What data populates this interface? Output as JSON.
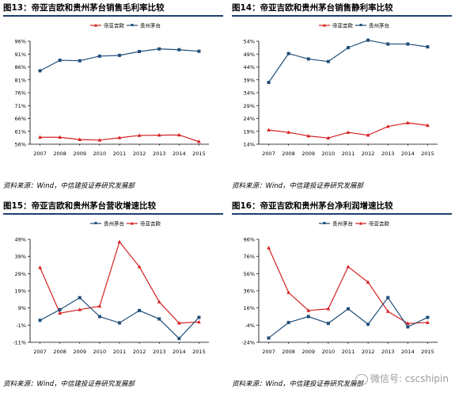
{
  "panels": [
    {
      "title": "图13：帝亚吉欧和贵州茅台销售毛利率比较",
      "source": "资料来源：Wind，中信建投证券研究发展部"
    },
    {
      "title": "图14：帝亚吉欧和贵州茅台销售静利率比较",
      "source": "资料来源：Wind，中信建投证券研究发展部"
    },
    {
      "title": "图15：帝亚吉欧和贵州茅台营收增速比较",
      "source": "资料来源：Wind，中信建投证券研究发展部"
    },
    {
      "title": "图16：帝亚吉欧和贵州茅台净利润增速比较",
      "source": "资料来源：Wind，中信建投证券研究发展部"
    }
  ],
  "watermark": "微信号: cscshipin",
  "colors": {
    "red": "#d42020",
    "blue": "#1f4e79",
    "title_rule": "#1f3f6e"
  },
  "chart_data": [
    {
      "type": "line",
      "title": "",
      "x": [
        "2007",
        "2008",
        "2009",
        "2010",
        "2011",
        "2012",
        "2013",
        "2014",
        "2015"
      ],
      "yticks": [
        "56%",
        "61%",
        "66%",
        "71%",
        "76%",
        "81%",
        "86%",
        "91%",
        "96%"
      ],
      "ylim": [
        56,
        96
      ],
      "grid": false,
      "legend_position": "top-center",
      "legend_order": [
        0,
        1
      ],
      "series": [
        {
          "name": "帝亚吉欧",
          "color": "#d42020",
          "marker": "triangle",
          "values": [
            58.7,
            58.7,
            57.8,
            57.6,
            58.5,
            59.4,
            59.5,
            59.6,
            57.0
          ]
        },
        {
          "name": "贵州茅台",
          "color": "#1f4e79",
          "marker": "square",
          "values": [
            84.5,
            88.6,
            88.4,
            90.2,
            90.5,
            92.0,
            93.0,
            92.7,
            92.1
          ]
        }
      ]
    },
    {
      "type": "line",
      "title": "",
      "x": [
        "2007",
        "2008",
        "2009",
        "2010",
        "2011",
        "2012",
        "2013",
        "2014",
        "2015"
      ],
      "yticks": [
        "14%",
        "19%",
        "24%",
        "29%",
        "34%",
        "39%",
        "44%",
        "49%",
        "54%"
      ],
      "ylim": [
        14,
        54
      ],
      "grid": false,
      "legend_position": "top-center",
      "legend_order": [
        0,
        1
      ],
      "series": [
        {
          "name": "帝亚吉欧",
          "color": "#d42020",
          "marker": "triangle",
          "values": [
            19.5,
            18.6,
            17.2,
            16.4,
            18.6,
            17.5,
            20.9,
            22.3,
            21.3
          ]
        },
        {
          "name": "贵州茅台",
          "color": "#1f4e79",
          "marker": "square",
          "values": [
            38.0,
            49.2,
            47.1,
            46.1,
            51.5,
            54.4,
            52.9,
            52.9,
            51.8
          ]
        }
      ]
    },
    {
      "type": "line",
      "title": "",
      "x": [
        "2007",
        "2008",
        "2009",
        "2010",
        "2011",
        "2012",
        "2013",
        "2014",
        "2015"
      ],
      "yticks": [
        "-11%",
        "-1%",
        "9%",
        "19%",
        "29%",
        "39%",
        "49%"
      ],
      "ylim": [
        -11,
        49
      ],
      "grid": false,
      "legend_position": "top-center",
      "legend_order": [
        1,
        0
      ],
      "series": [
        {
          "name": "帝亚吉欧",
          "color": "#d42020",
          "marker": "triangle",
          "values": [
            32.5,
            6.0,
            8.0,
            10.0,
            47.5,
            33.0,
            12.5,
            0.2,
            0.8
          ]
        },
        {
          "name": "贵州茅台",
          "color": "#1f4e79",
          "marker": "square",
          "values": [
            1.8,
            8.0,
            15.0,
            4.0,
            0.3,
            7.5,
            2.6,
            -8.8,
            3.5
          ]
        }
      ]
    },
    {
      "type": "line",
      "title": "",
      "x": [
        "2007",
        "2008",
        "2009",
        "2010",
        "2011",
        "2012",
        "2013",
        "2014",
        "2015"
      ],
      "yticks": [
        "-24%",
        "-4%",
        "16%",
        "36%",
        "56%",
        "76%",
        "96%"
      ],
      "ylim": [
        -24,
        96
      ],
      "grid": false,
      "legend_position": "top-center",
      "legend_order": [
        1,
        0
      ],
      "series": [
        {
          "name": "帝亚吉欧",
          "color": "#d42020",
          "marker": "triangle",
          "values": [
            86.0,
            34.0,
            13.0,
            15.0,
            64.0,
            46.0,
            12.0,
            -2.0,
            -1.0
          ]
        },
        {
          "name": "贵州茅台",
          "color": "#1f4e79",
          "marker": "square",
          "values": [
            -19.0,
            -1.0,
            6.0,
            -2.0,
            15.0,
            -3.0,
            28.0,
            -6.0,
            5.0
          ]
        }
      ]
    }
  ]
}
